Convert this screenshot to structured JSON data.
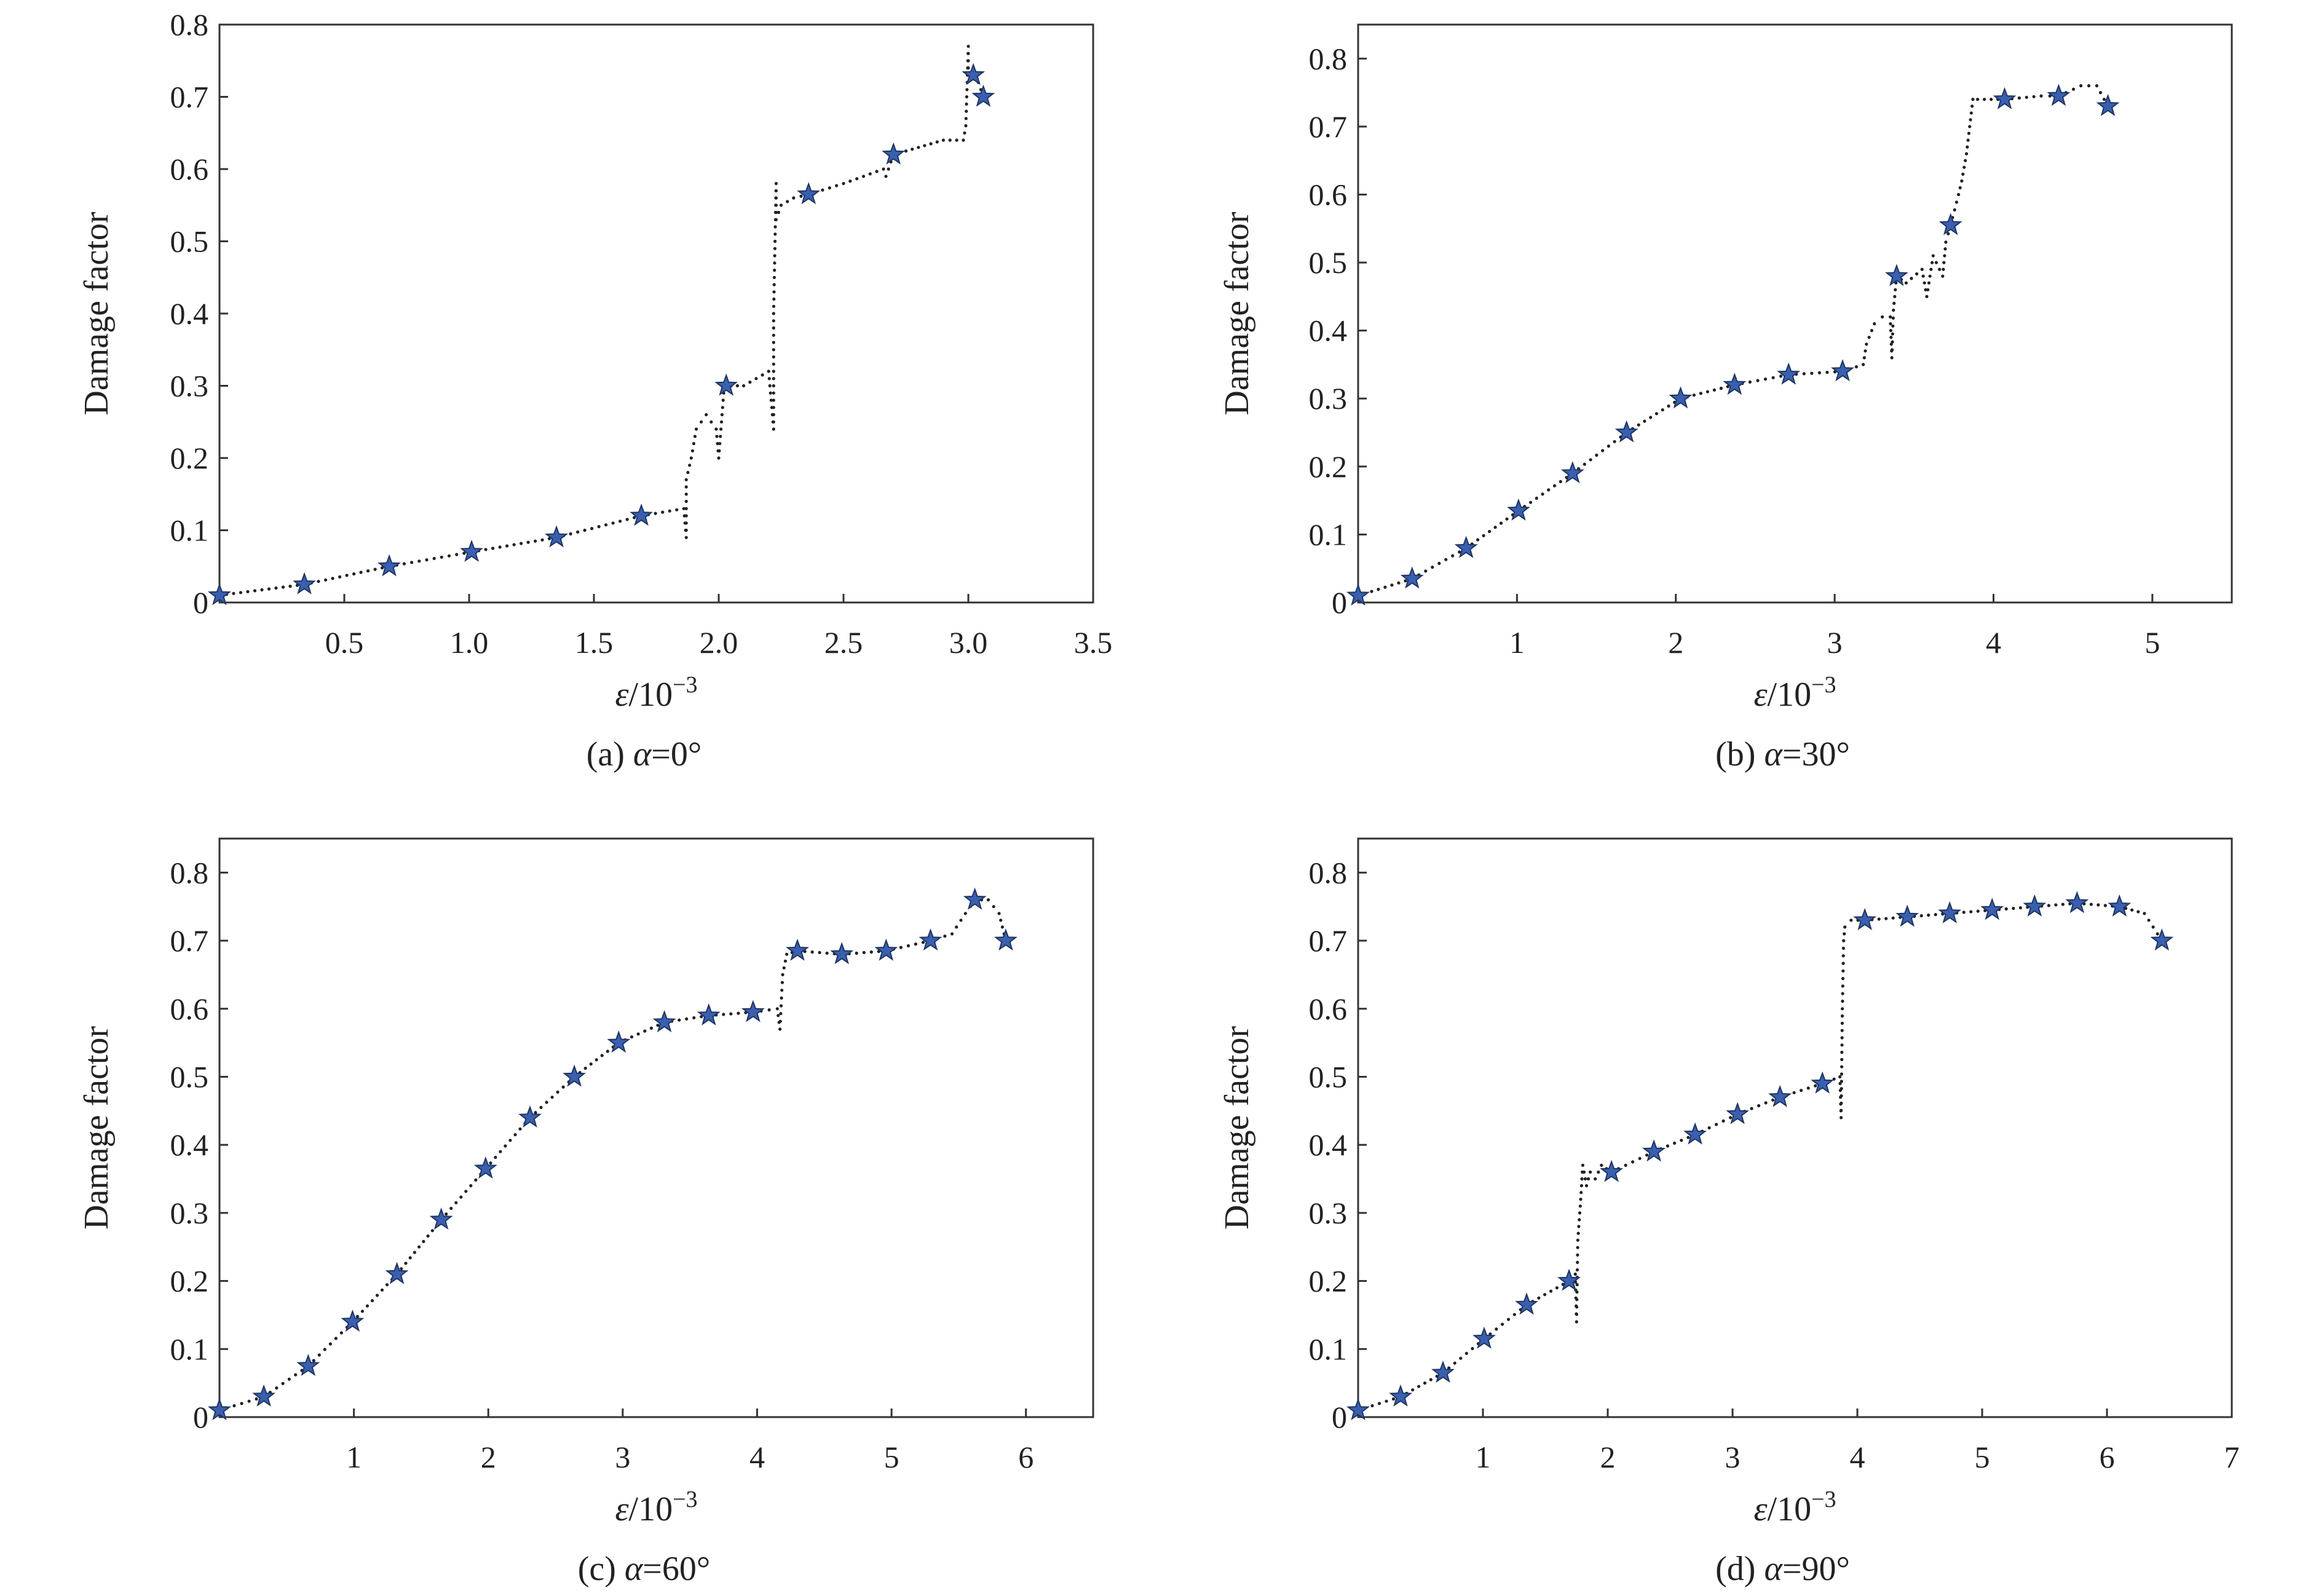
{
  "chart_data": [
    {
      "type": "scatter",
      "panel": "a",
      "caption_prefix": "(a) ",
      "caption_symbol": "α",
      "caption_suffix": "=0°",
      "xlabel_symbol": "ε",
      "xlabel_rest": "/10",
      "xlabel_exp": "−3",
      "ylabel": "Damage factor",
      "xlim": [
        0,
        3.5
      ],
      "ylim": [
        0,
        0.8
      ],
      "xticks": [
        0.5,
        1.0,
        1.5,
        2.0,
        2.5,
        3.0,
        3.5
      ],
      "xtick_labels": [
        "0.5",
        "1.0",
        "1.5",
        "2.0",
        "2.5",
        "3.0",
        "3.5"
      ],
      "yticks": [
        0,
        0.1,
        0.2,
        0.3,
        0.4,
        0.5,
        0.6,
        0.7,
        0.8
      ],
      "ytick_labels": [
        "0",
        "0.1",
        "0.2",
        "0.3",
        "0.4",
        "0.5",
        "0.6",
        "0.7",
        "0.8"
      ],
      "markers": {
        "x": [
          0.0,
          0.34,
          0.68,
          1.01,
          1.35,
          1.69,
          2.03,
          2.36,
          2.7,
          3.02,
          3.06
        ],
        "y": [
          0.01,
          0.025,
          0.05,
          0.07,
          0.09,
          0.12,
          0.3,
          0.565,
          0.62,
          0.73,
          0.7
        ]
      },
      "curve": {
        "x": [
          0.0,
          0.34,
          0.68,
          1.01,
          1.35,
          1.69,
          1.86,
          1.87,
          1.87,
          1.89,
          1.91,
          1.95,
          1.99,
          2.0,
          2.02,
          2.05,
          2.1,
          2.15,
          2.2,
          2.22,
          2.22,
          2.22,
          2.23,
          2.23,
          2.25,
          2.3,
          2.36,
          2.5,
          2.66,
          2.67,
          2.7,
          2.8,
          2.9,
          2.98,
          2.99,
          3.0,
          3.0,
          3.02,
          3.04,
          3.06
        ],
        "y": [
          0.01,
          0.025,
          0.05,
          0.07,
          0.09,
          0.12,
          0.13,
          0.09,
          0.17,
          0.2,
          0.24,
          0.26,
          0.24,
          0.2,
          0.29,
          0.3,
          0.3,
          0.31,
          0.32,
          0.24,
          0.3,
          0.4,
          0.58,
          0.53,
          0.55,
          0.56,
          0.565,
          0.58,
          0.6,
          0.59,
          0.62,
          0.63,
          0.64,
          0.64,
          0.66,
          0.77,
          0.74,
          0.73,
          0.72,
          0.7
        ]
      }
    },
    {
      "type": "scatter",
      "panel": "b",
      "caption_prefix": "(b) ",
      "caption_symbol": "α",
      "caption_suffix": "=30°",
      "xlabel_symbol": "ε",
      "xlabel_rest": "/10",
      "xlabel_exp": "−3",
      "ylabel": "Damage factor",
      "xlim": [
        0,
        5.5
      ],
      "ylim": [
        0,
        0.85
      ],
      "xticks": [
        1,
        2,
        3,
        4,
        5
      ],
      "xtick_labels": [
        "1",
        "2",
        "3",
        "4",
        "5"
      ],
      "yticks": [
        0,
        0.1,
        0.2,
        0.3,
        0.4,
        0.5,
        0.6,
        0.7,
        0.8
      ],
      "ytick_labels": [
        "0",
        "0.1",
        "0.2",
        "0.3",
        "0.4",
        "0.5",
        "0.6",
        "0.7",
        "0.8"
      ],
      "markers": {
        "x": [
          0.0,
          0.34,
          0.68,
          1.01,
          1.35,
          1.69,
          2.03,
          2.37,
          2.71,
          3.05,
          3.39,
          3.73,
          4.07,
          4.41,
          4.72
        ],
        "y": [
          0.01,
          0.035,
          0.08,
          0.135,
          0.19,
          0.25,
          0.3,
          0.32,
          0.335,
          0.34,
          0.48,
          0.555,
          0.74,
          0.745,
          0.73
        ]
      },
      "curve": {
        "x": [
          0.0,
          0.34,
          0.68,
          1.01,
          1.35,
          1.69,
          2.03,
          2.37,
          2.71,
          3.05,
          3.18,
          3.2,
          3.25,
          3.3,
          3.35,
          3.36,
          3.37,
          3.39,
          3.45,
          3.55,
          3.58,
          3.62,
          3.68,
          3.7,
          3.73,
          3.78,
          3.8,
          3.83,
          3.85,
          3.87,
          3.9,
          4.07,
          4.3,
          4.41,
          4.55,
          4.65,
          4.72
        ],
        "y": [
          0.01,
          0.035,
          0.08,
          0.135,
          0.19,
          0.25,
          0.3,
          0.32,
          0.335,
          0.34,
          0.35,
          0.38,
          0.41,
          0.42,
          0.42,
          0.36,
          0.43,
          0.48,
          0.47,
          0.49,
          0.45,
          0.51,
          0.48,
          0.53,
          0.555,
          0.6,
          0.62,
          0.66,
          0.7,
          0.74,
          0.74,
          0.74,
          0.745,
          0.745,
          0.76,
          0.76,
          0.73
        ]
      }
    },
    {
      "type": "scatter",
      "panel": "c",
      "caption_prefix": "(c) ",
      "caption_symbol": "α",
      "caption_suffix": "=60°",
      "xlabel_symbol": "ε",
      "xlabel_rest": "/10",
      "xlabel_exp": "−3",
      "ylabel": "Damage factor",
      "xlim": [
        0,
        6.5
      ],
      "ylim": [
        0,
        0.85
      ],
      "xticks": [
        1,
        2,
        3,
        4,
        5,
        6
      ],
      "xtick_labels": [
        "1",
        "2",
        "3",
        "4",
        "5",
        "6"
      ],
      "yticks": [
        0,
        0.1,
        0.2,
        0.3,
        0.4,
        0.5,
        0.6,
        0.7,
        0.8
      ],
      "ytick_labels": [
        "0",
        "0.1",
        "0.2",
        "0.3",
        "0.4",
        "0.5",
        "0.6",
        "0.7",
        "0.8"
      ],
      "markers": {
        "x": [
          0.0,
          0.33,
          0.66,
          0.99,
          1.32,
          1.65,
          1.98,
          2.31,
          2.64,
          2.97,
          3.31,
          3.64,
          3.97,
          4.3,
          4.63,
          4.96,
          5.29,
          5.62,
          5.85
        ],
        "y": [
          0.01,
          0.03,
          0.075,
          0.14,
          0.21,
          0.29,
          0.365,
          0.44,
          0.5,
          0.55,
          0.58,
          0.59,
          0.595,
          0.685,
          0.68,
          0.685,
          0.7,
          0.76,
          0.7
        ]
      },
      "curve": {
        "x": [
          0.0,
          0.33,
          0.66,
          0.99,
          1.32,
          1.65,
          1.98,
          2.31,
          2.64,
          2.97,
          3.31,
          3.64,
          3.97,
          4.15,
          4.17,
          4.19,
          4.22,
          4.3,
          4.63,
          4.96,
          5.29,
          5.45,
          5.55,
          5.62,
          5.72,
          5.8,
          5.85
        ],
        "y": [
          0.01,
          0.03,
          0.075,
          0.14,
          0.21,
          0.29,
          0.365,
          0.44,
          0.5,
          0.55,
          0.58,
          0.59,
          0.595,
          0.6,
          0.57,
          0.65,
          0.68,
          0.685,
          0.68,
          0.685,
          0.7,
          0.71,
          0.74,
          0.76,
          0.76,
          0.74,
          0.7
        ]
      }
    },
    {
      "type": "scatter",
      "panel": "d",
      "caption_prefix": "(d) ",
      "caption_symbol": "α",
      "caption_suffix": "=90°",
      "xlabel_symbol": "ε",
      "xlabel_rest": "/10",
      "xlabel_exp": "−3",
      "ylabel": "Damage factor",
      "xlim": [
        0,
        7
      ],
      "ylim": [
        0,
        0.85
      ],
      "xticks": [
        1,
        2,
        3,
        4,
        5,
        6,
        7
      ],
      "xtick_labels": [
        "1",
        "2",
        "3",
        "4",
        "5",
        "6",
        "7"
      ],
      "yticks": [
        0,
        0.1,
        0.2,
        0.3,
        0.4,
        0.5,
        0.6,
        0.7,
        0.8
      ],
      "ytick_labels": [
        "0",
        "0.1",
        "0.2",
        "0.3",
        "0.4",
        "0.5",
        "0.6",
        "0.7",
        "0.8"
      ],
      "markers": {
        "x": [
          0.0,
          0.34,
          0.68,
          1.01,
          1.35,
          1.69,
          2.03,
          2.37,
          2.7,
          3.04,
          3.38,
          3.72,
          4.06,
          4.4,
          4.74,
          5.08,
          5.42,
          5.76,
          6.1,
          6.44
        ],
        "y": [
          0.01,
          0.03,
          0.065,
          0.115,
          0.165,
          0.2,
          0.36,
          0.39,
          0.415,
          0.445,
          0.47,
          0.49,
          0.73,
          0.735,
          0.74,
          0.745,
          0.75,
          0.755,
          0.75,
          0.7
        ]
      },
      "curve": {
        "x": [
          0.0,
          0.34,
          0.68,
          1.01,
          1.35,
          1.69,
          1.74,
          1.75,
          1.76,
          1.78,
          1.8,
          1.83,
          1.86,
          1.9,
          1.95,
          2.03,
          2.37,
          2.7,
          3.04,
          3.38,
          3.72,
          3.86,
          3.87,
          3.88,
          3.89,
          3.9,
          3.95,
          4.06,
          4.4,
          4.74,
          5.08,
          5.42,
          5.76,
          6.1,
          6.3,
          6.44
        ],
        "y": [
          0.01,
          0.03,
          0.065,
          0.115,
          0.165,
          0.2,
          0.21,
          0.14,
          0.26,
          0.31,
          0.37,
          0.34,
          0.36,
          0.35,
          0.37,
          0.36,
          0.39,
          0.415,
          0.445,
          0.47,
          0.49,
          0.5,
          0.44,
          0.6,
          0.7,
          0.72,
          0.73,
          0.73,
          0.735,
          0.74,
          0.745,
          0.75,
          0.755,
          0.75,
          0.74,
          0.7
        ]
      }
    }
  ]
}
